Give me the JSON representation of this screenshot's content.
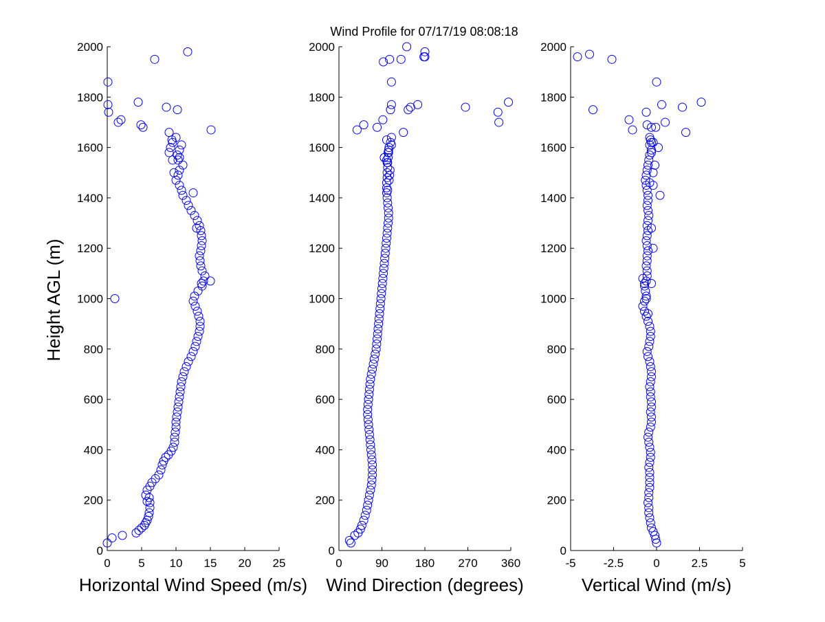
{
  "title": "Wind Profile for  07/17/19 08:08:18",
  "marker_color": "#0000ff",
  "chart_data": [
    {
      "type": "scatter",
      "xlabel": "Horizontal Wind Speed (m/s)",
      "ylabel": "Height AGL (m)",
      "xlim": [
        0,
        25
      ],
      "ylim": [
        0,
        2000
      ],
      "xticks": [
        "0",
        "5",
        "10",
        "15",
        "20",
        "25"
      ],
      "xtick_values": [
        0,
        5,
        10,
        15,
        20,
        25
      ],
      "yticks": [
        "0",
        "200",
        "400",
        "600",
        "800",
        "1000",
        "1200",
        "1400",
        "1600",
        "1800",
        "2000"
      ],
      "ytick_values": [
        0,
        200,
        400,
        600,
        800,
        1000,
        1200,
        1400,
        1600,
        1800,
        2000
      ],
      "grid": false,
      "x": [
        0.0,
        0.7,
        2.2,
        4.2,
        4.6,
        5.0,
        5.4,
        5.6,
        5.8,
        6.0,
        6.1,
        6.2,
        6.2,
        6.1,
        5.8,
        5.6,
        5.8,
        6.2,
        6.5,
        7.0,
        7.5,
        7.8,
        8.0,
        8.2,
        8.5,
        8.9,
        9.3,
        9.6,
        9.8,
        9.8,
        9.9,
        10.0,
        10.0,
        10.1,
        10.2,
        10.3,
        10.4,
        10.5,
        10.6,
        10.7,
        10.8,
        11.0,
        11.2,
        11.5,
        11.8,
        12.2,
        12.5,
        12.8,
        13.0,
        13.2,
        13.4,
        13.5,
        13.5,
        13.3,
        13.1,
        12.8,
        12.5,
        12.7,
        13.2,
        13.8,
        14.0,
        14.2,
        13.8,
        13.6,
        13.5,
        13.4,
        13.6,
        13.7,
        13.8,
        13.7,
        13.6,
        13.4,
        13.1,
        12.7,
        12.2,
        11.8,
        11.5,
        11.0,
        10.8,
        10.5,
        10.0,
        10.3,
        10.5,
        11.0,
        10.5,
        9.5,
        9.0,
        9.2,
        9.5,
        10.0,
        10.2,
        10.5,
        10.8,
        9.4,
        9.0,
        15.1,
        5.2,
        4.9,
        1.6,
        2.0,
        0.2,
        0.1,
        10.2,
        8.6,
        4.5,
        0.1,
        6.9,
        11.7,
        1.1,
        9.7,
        10.3,
        13.0,
        15.0,
        12.5,
        13.7
      ],
      "y": [
        30,
        50,
        60,
        70,
        80,
        90,
        100,
        110,
        120,
        135,
        150,
        170,
        190,
        210,
        195,
        220,
        240,
        255,
        270,
        285,
        300,
        320,
        340,
        355,
        370,
        380,
        395,
        410,
        430,
        450,
        470,
        490,
        510,
        530,
        550,
        570,
        590,
        610,
        630,
        650,
        670,
        690,
        710,
        730,
        750,
        770,
        790,
        810,
        830,
        850,
        870,
        890,
        910,
        930,
        950,
        970,
        990,
        1010,
        1030,
        1050,
        1070,
        1090,
        1110,
        1130,
        1150,
        1170,
        1190,
        1210,
        1230,
        1250,
        1270,
        1290,
        1310,
        1330,
        1350,
        1370,
        1390,
        1410,
        1430,
        1450,
        1470,
        1490,
        1510,
        1530,
        1560,
        1550,
        1580,
        1600,
        1620,
        1640,
        1570,
        1590,
        1610,
        1630,
        1660,
        1670,
        1680,
        1690,
        1700,
        1710,
        1740,
        1770,
        1750,
        1760,
        1780,
        1860,
        1950,
        1980,
        1000,
        1500,
        1550,
        1280,
        1070,
        1420,
        1060
      ]
    },
    {
      "type": "scatter",
      "xlabel": "Wind Direction (degrees)",
      "ylabel": "",
      "xlim": [
        0,
        360
      ],
      "ylim": [
        0,
        2000
      ],
      "xticks": [
        "0",
        "90",
        "180",
        "270",
        "360"
      ],
      "xtick_values": [
        0,
        90,
        180,
        270,
        360
      ],
      "yticks": [
        "0",
        "200",
        "400",
        "600",
        "800",
        "1000",
        "1200",
        "1400",
        "1600",
        "1800",
        "2000"
      ],
      "ytick_values": [
        0,
        200,
        400,
        600,
        800,
        1000,
        1200,
        1400,
        1600,
        1800,
        2000
      ],
      "grid": false,
      "x": [
        25,
        22,
        33,
        40,
        45,
        48,
        52,
        55,
        58,
        60,
        62,
        64,
        66,
        68,
        69,
        70,
        70,
        70,
        69,
        68,
        67,
        66,
        65,
        64,
        63,
        62,
        61,
        60,
        60,
        61,
        62,
        63,
        64,
        65,
        66,
        68,
        70,
        72,
        74,
        76,
        78,
        79,
        80,
        81,
        82,
        83,
        84,
        85,
        86,
        87,
        88,
        89,
        90,
        91,
        92,
        93,
        94,
        95,
        96,
        97,
        98,
        99,
        100,
        101,
        102,
        103,
        104,
        104,
        103,
        102,
        101,
        100,
        100,
        100,
        101,
        101,
        102,
        102,
        103,
        103,
        104,
        105,
        106,
        107,
        100,
        95,
        105,
        110,
        108,
        110,
        100,
        104,
        101,
        102,
        95,
        38,
        52,
        80,
        92,
        135,
        110,
        180,
        178,
        110,
        145,
        108,
        165,
        150,
        335,
        265,
        355,
        333,
        142,
        93,
        106,
        130,
        180
      ],
      "y": [
        30,
        40,
        60,
        70,
        85,
        100,
        120,
        140,
        160,
        180,
        200,
        220,
        240,
        260,
        280,
        300,
        320,
        340,
        360,
        380,
        400,
        420,
        440,
        460,
        480,
        500,
        520,
        540,
        560,
        580,
        600,
        620,
        640,
        660,
        680,
        700,
        720,
        740,
        760,
        780,
        800,
        820,
        840,
        860,
        880,
        900,
        920,
        940,
        960,
        980,
        1000,
        1020,
        1040,
        1060,
        1080,
        1100,
        1120,
        1140,
        1160,
        1180,
        1200,
        1220,
        1240,
        1260,
        1280,
        1300,
        1320,
        1340,
        1360,
        1380,
        1400,
        1420,
        1440,
        1460,
        1480,
        1500,
        1520,
        1540,
        1560,
        1580,
        1590,
        1470,
        1490,
        1510,
        1550,
        1560,
        1600,
        1610,
        1620,
        1640,
        1630,
        1580,
        1540,
        1430,
        1560,
        1670,
        1690,
        1680,
        1710,
        1660,
        1860,
        1980,
        1960,
        1770,
        1750,
        1750,
        1770,
        1760,
        1700,
        1760,
        1780,
        1740,
        2000,
        1940,
        1950,
        1950,
        1960
      ]
    },
    {
      "type": "scatter",
      "xlabel": "Vertical Wind (m/s)",
      "ylabel": "",
      "xlim": [
        -5,
        5
      ],
      "ylim": [
        0,
        2000
      ],
      "xticks": [
        "-5",
        "-2.5",
        "0",
        "2.5",
        "5"
      ],
      "xtick_values": [
        -5,
        -2.5,
        0,
        2.5,
        5
      ],
      "yticks": [
        "0",
        "200",
        "400",
        "600",
        "800",
        "1000",
        "1200",
        "1400",
        "1600",
        "1800",
        "2000"
      ],
      "ytick_values": [
        0,
        200,
        400,
        600,
        800,
        1000,
        1200,
        1400,
        1600,
        1800,
        2000
      ],
      "grid": false,
      "x": [
        0.0,
        -0.05,
        -0.1,
        -0.2,
        -0.3,
        -0.35,
        -0.4,
        -0.45,
        -0.45,
        -0.5,
        -0.45,
        -0.45,
        -0.4,
        -0.4,
        -0.4,
        -0.4,
        -0.45,
        -0.4,
        -0.35,
        -0.35,
        -0.4,
        -0.45,
        -0.5,
        -0.45,
        -0.35,
        -0.3,
        -0.3,
        -0.35,
        -0.3,
        -0.3,
        -0.35,
        -0.35,
        -0.4,
        -0.35,
        -0.3,
        -0.3,
        -0.35,
        -0.4,
        -0.5,
        -0.55,
        -0.45,
        -0.4,
        -0.35,
        -0.35,
        -0.4,
        -0.5,
        -0.6,
        -0.7,
        -0.8,
        -0.7,
        -0.6,
        -0.65,
        -0.7,
        -0.6,
        -0.55,
        -0.55,
        -0.6,
        -0.55,
        -0.55,
        -0.5,
        -0.55,
        -0.6,
        -0.55,
        -0.5,
        -0.55,
        -0.5,
        -0.45,
        -0.5,
        -0.55,
        -0.5,
        -0.5,
        -0.55,
        -0.6,
        -0.65,
        -0.6,
        -0.55,
        -0.5,
        -0.45,
        -0.4,
        -0.3,
        -0.4,
        -0.35,
        -0.4,
        -0.3,
        -0.2,
        -0.1,
        -0.3,
        -0.2,
        0.1,
        -0.05,
        -0.4,
        -0.2,
        -0.7,
        -0.8,
        -0.6,
        -0.5,
        -0.3,
        -0.2,
        0.2,
        -0.55,
        -1.6,
        -1.4,
        0.5,
        1.7,
        0.3,
        -3.7,
        1.5,
        2.6,
        -0.6,
        -3.9,
        -2.6,
        -4.6,
        0.0,
        -0.3,
        -0.3
      ],
      "y": [
        30,
        45,
        60,
        75,
        90,
        110,
        130,
        150,
        170,
        190,
        210,
        230,
        250,
        270,
        290,
        310,
        330,
        350,
        370,
        390,
        410,
        430,
        450,
        470,
        490,
        510,
        530,
        550,
        570,
        590,
        610,
        630,
        650,
        670,
        690,
        710,
        730,
        750,
        770,
        790,
        810,
        830,
        850,
        870,
        890,
        910,
        930,
        950,
        970,
        990,
        1010,
        1030,
        1050,
        1070,
        1090,
        1110,
        1130,
        1150,
        1170,
        1190,
        1210,
        1230,
        1250,
        1270,
        1290,
        1310,
        1330,
        1350,
        1370,
        1390,
        1410,
        1430,
        1450,
        1470,
        1490,
        1510,
        1530,
        1550,
        1570,
        1590,
        1610,
        1630,
        1640,
        1280,
        1500,
        1530,
        1580,
        1620,
        1600,
        1680,
        1460,
        1450,
        1060,
        1080,
        1000,
        940,
        1060,
        1200,
        1410,
        1690,
        1710,
        1670,
        1700,
        1660,
        1770,
        1750,
        1760,
        1780,
        1740,
        1970,
        1950,
        1960,
        1860,
        1680,
        1620
      ]
    }
  ]
}
